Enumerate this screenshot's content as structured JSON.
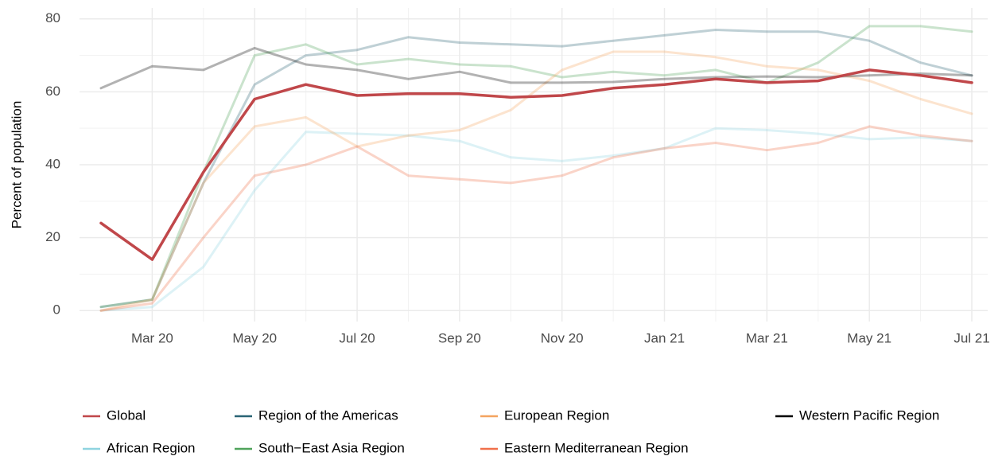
{
  "chart_data": {
    "type": "line",
    "y_label": "Percent of population",
    "x": [
      "2020-02",
      "2020-03",
      "2020-04",
      "2020-05",
      "2020-06",
      "2020-07",
      "2020-08",
      "2020-09",
      "2020-10",
      "2020-11",
      "2020-12",
      "2021-01",
      "2021-02",
      "2021-03",
      "2021-04",
      "2021-05",
      "2021-06",
      "2021-07"
    ],
    "xlim": [
      "2020-02",
      "2021-07"
    ],
    "xticks": [
      {
        "value": "2020-03",
        "label": "Mar 20"
      },
      {
        "value": "2020-05",
        "label": "May 20"
      },
      {
        "value": "2020-07",
        "label": "Jul 20"
      },
      {
        "value": "2020-09",
        "label": "Sep 20"
      },
      {
        "value": "2020-11",
        "label": "Nov 20"
      },
      {
        "value": "2021-01",
        "label": "Jan 21"
      },
      {
        "value": "2021-03",
        "label": "Mar 21"
      },
      {
        "value": "2021-05",
        "label": "May 21"
      },
      {
        "value": "2021-07",
        "label": "Jul 21"
      }
    ],
    "ylim": [
      -3,
      83
    ],
    "yticks": [
      0,
      20,
      40,
      60,
      80
    ],
    "grid": true,
    "legend": "bottom",
    "series": [
      {
        "name": "Global",
        "color": "#c0474a",
        "alpha": 1,
        "values": [
          24,
          14,
          38,
          58,
          62,
          59,
          59.5,
          59.5,
          58.5,
          59,
          61,
          62,
          63.5,
          62.5,
          63,
          66,
          64.5,
          62.5
        ]
      },
      {
        "name": "African Region",
        "color": "#8fd4e0",
        "alpha": 0.3,
        "values": [
          0,
          1,
          12,
          33,
          49,
          48.5,
          48,
          46.5,
          42,
          41,
          42.5,
          44.5,
          50,
          49.5,
          48.5,
          47,
          47.5,
          46.5
        ]
      },
      {
        "name": "Region of the Americas",
        "color": "#2a6475",
        "alpha": 0.3,
        "values": [
          1,
          3,
          35,
          62,
          70,
          71.5,
          75,
          73.5,
          73,
          72.5,
          74,
          75.5,
          77,
          76.5,
          76.5,
          74,
          68,
          64.5
        ]
      },
      {
        "name": "South−East Asia Region",
        "color": "#4fa35b",
        "alpha": 0.3,
        "values": [
          1,
          3,
          38,
          70,
          73,
          67.5,
          69,
          67.5,
          67,
          64,
          65.5,
          64.5,
          66,
          62.5,
          68,
          78,
          78,
          76.5
        ]
      },
      {
        "name": "European Region",
        "color": "#f4a460",
        "alpha": 0.3,
        "values": [
          0,
          3,
          35,
          50.5,
          53,
          45,
          48,
          49.5,
          55,
          66,
          71,
          71,
          69.5,
          67,
          66,
          63,
          58,
          54
        ]
      },
      {
        "name": "Eastern Mediterranean Region",
        "color": "#f0704a",
        "alpha": 0.3,
        "values": [
          0,
          2,
          20,
          37,
          40,
          45,
          37,
          36,
          35,
          37,
          42,
          44.5,
          46,
          44,
          46,
          50.5,
          48,
          46.5
        ]
      },
      {
        "name": "Western Pacific Region",
        "color": "#000000",
        "alpha": 0.3,
        "values": [
          61,
          67,
          66,
          72,
          67.5,
          66,
          63.5,
          65.5,
          62.5,
          62.5,
          62.7,
          63.5,
          64,
          64.2,
          64,
          64.5,
          65,
          64.5
        ]
      }
    ]
  }
}
